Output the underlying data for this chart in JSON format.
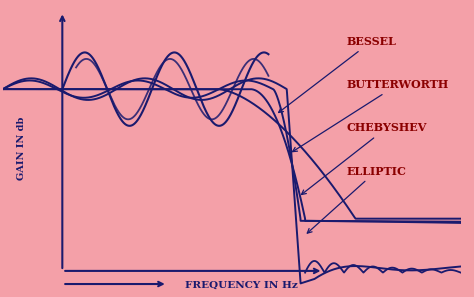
{
  "background_color": "#F4A0A8",
  "line_color": "#1a1a6e",
  "text_color": "#8B0000",
  "text_bessel": "BESSEL",
  "text_butterworth": "BUTTERWORTH",
  "text_chebyshev": "CHEBYSHEV",
  "text_elliptic": "ELLIPTIC",
  "xlabel": "FREQUENCY IN Hz",
  "ylabel": "GAIN IN db",
  "figsize": [
    4.74,
    2.97
  ],
  "dpi": 100,
  "pb": 0.6,
  "xlim": [
    0,
    1.0
  ],
  "ylim": [
    -0.35,
    1.0
  ]
}
